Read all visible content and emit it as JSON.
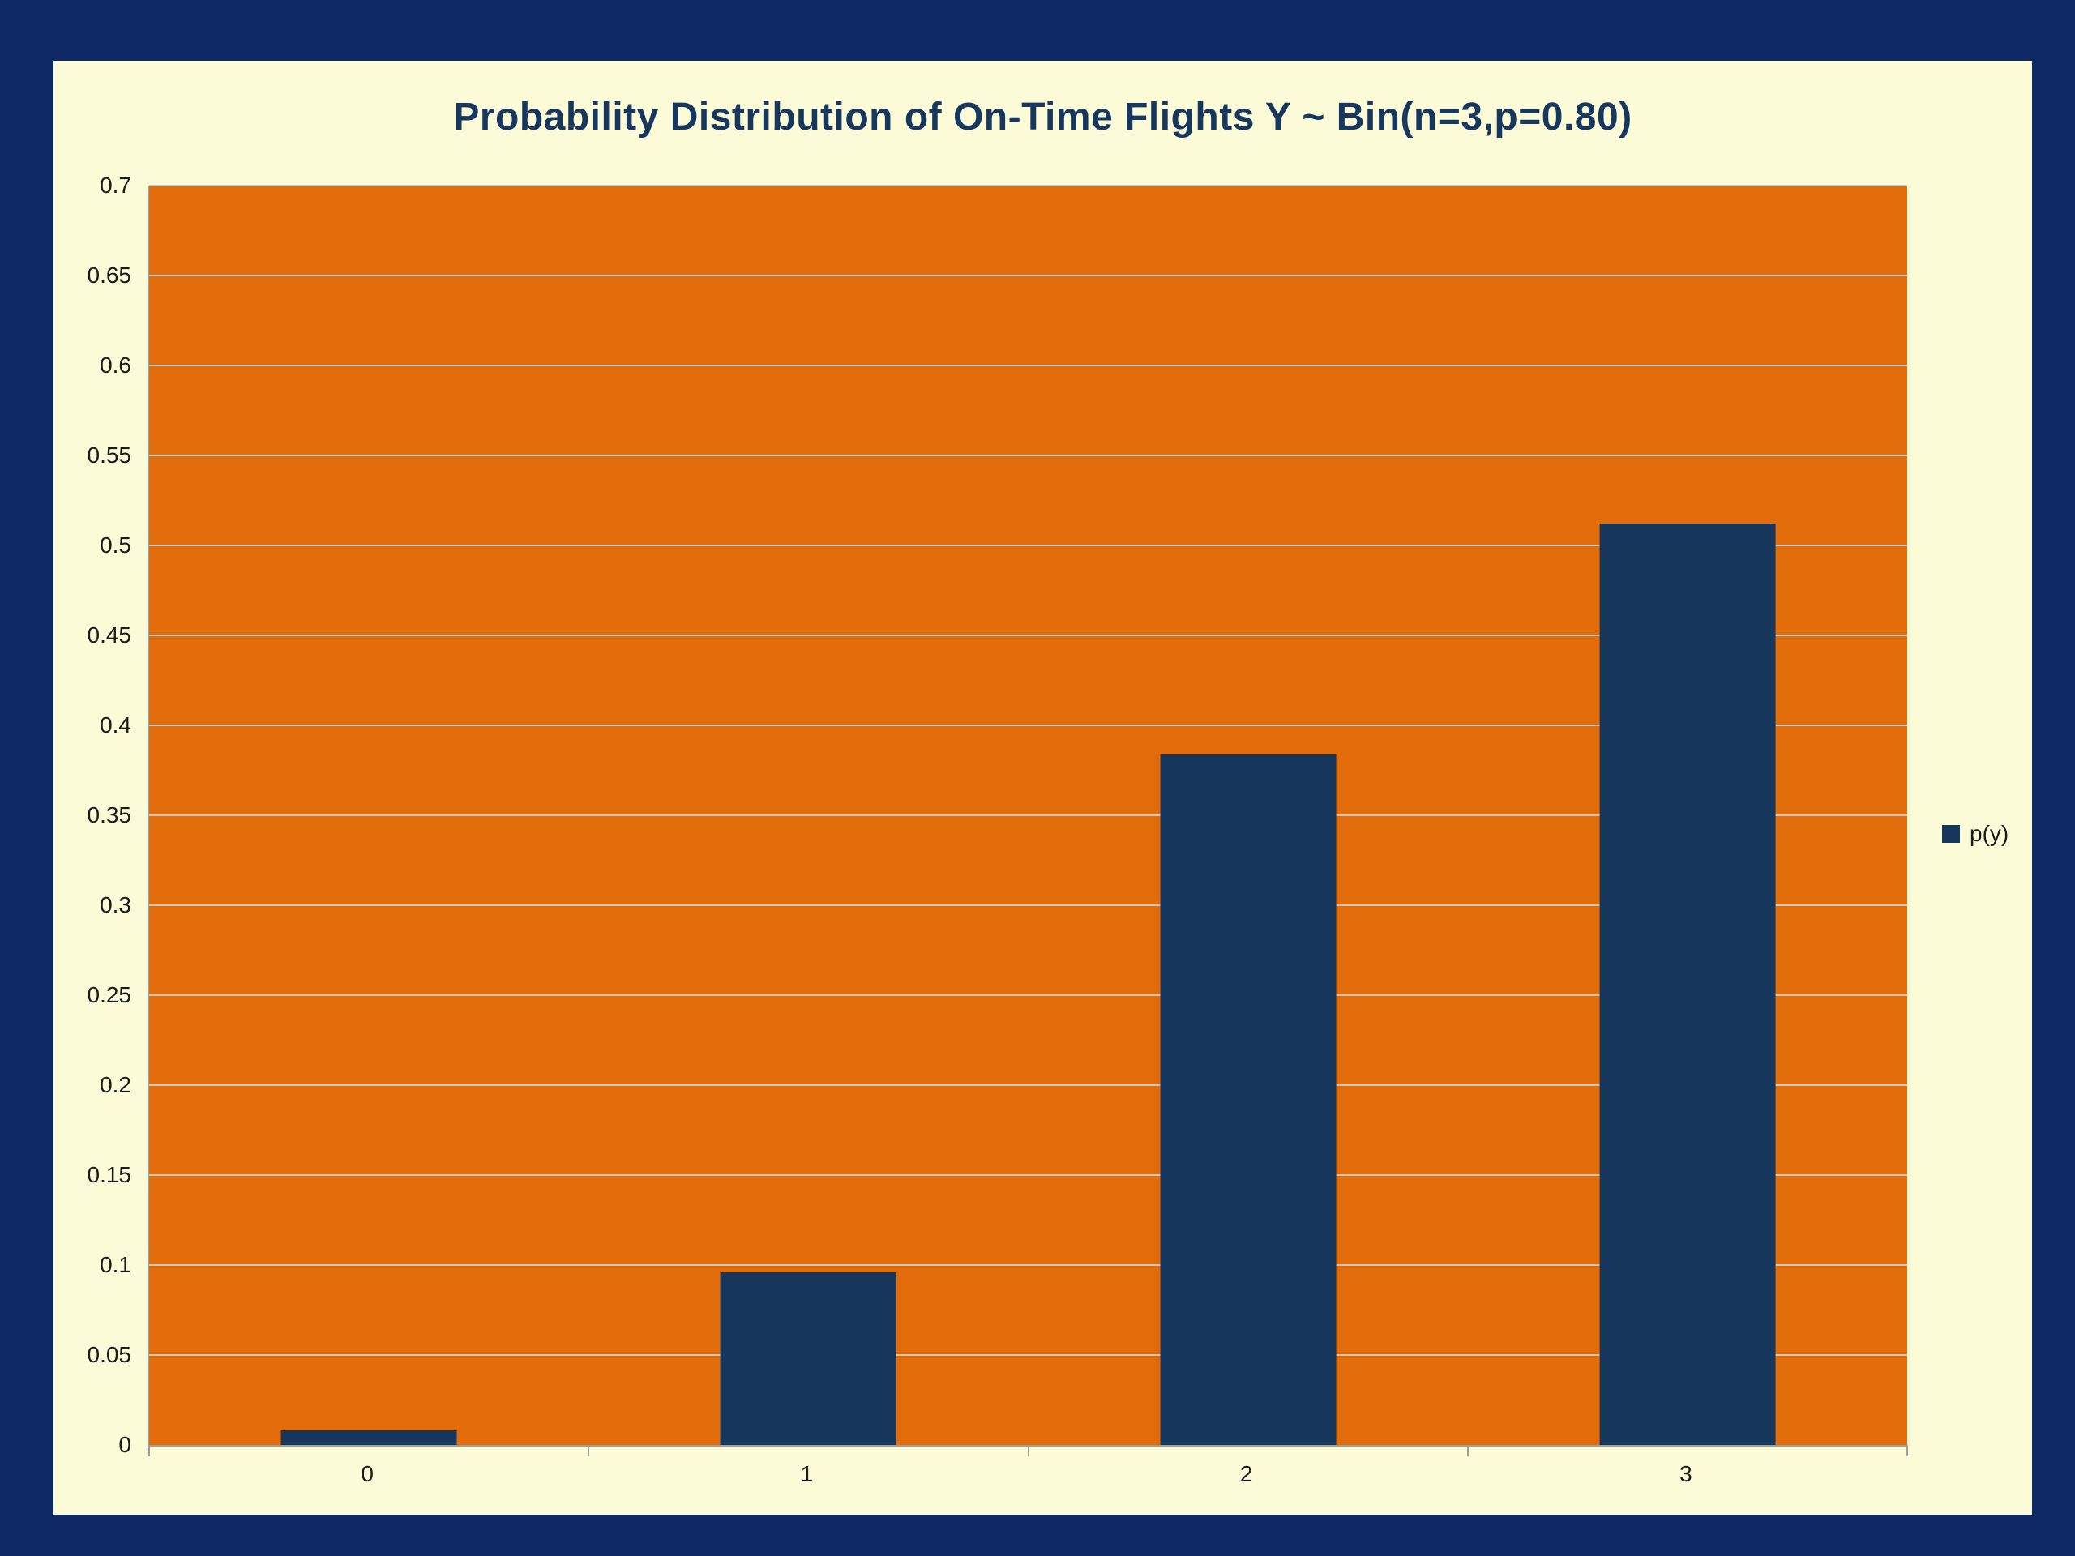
{
  "chart_data": {
    "type": "bar",
    "title": "Probability Distribution of On-Time Flights Y ~ Bin(n=3,p=0.80)",
    "categories": [
      "0",
      "1",
      "2",
      "3"
    ],
    "series": [
      {
        "name": "p(y)",
        "values": [
          0.008,
          0.096,
          0.384,
          0.512
        ]
      }
    ],
    "xlabel": "",
    "ylabel": "",
    "ylim": [
      0,
      0.7
    ],
    "ytick_step": 0.05,
    "grid": true,
    "legend_position": "right",
    "colors": {
      "page_background": "#0E2963",
      "panel_background": "#FBFBD8",
      "plot_background": "#E36C0A",
      "bar": "#16365C",
      "gridline": "#C8C8C3",
      "title_text": "#17375E",
      "axis_text": "#1A1A1A",
      "axis_line": "#9aa09a"
    }
  },
  "legend": {
    "label": "p(y)"
  }
}
